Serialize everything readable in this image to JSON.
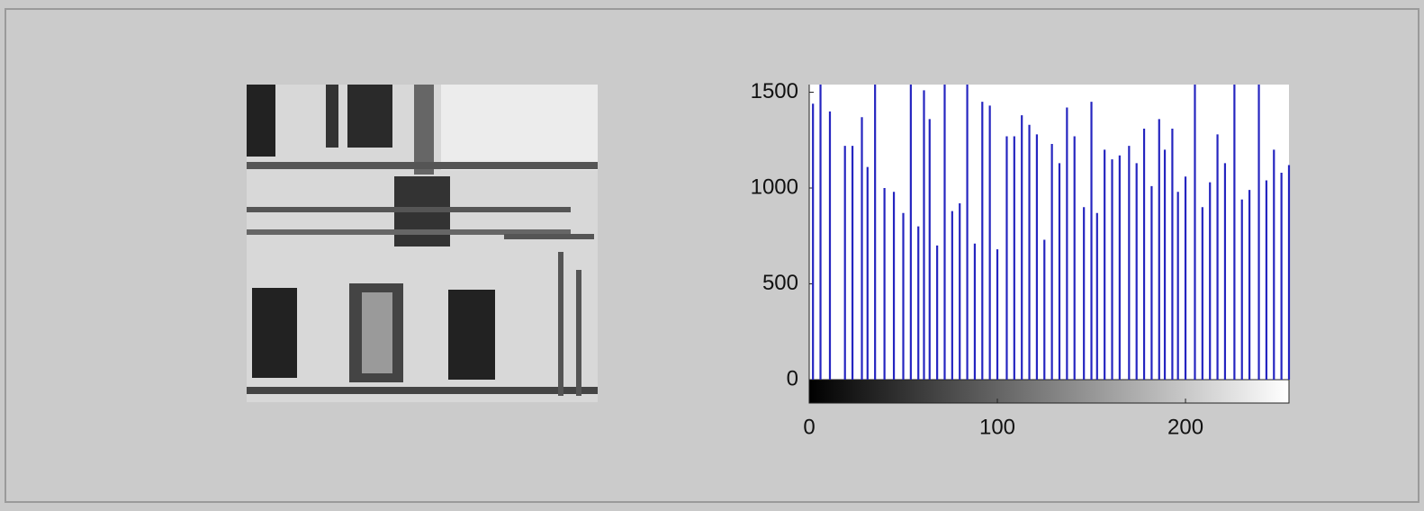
{
  "chart_data": {
    "type": "stem",
    "color": "#2525c0",
    "x": [
      2,
      6,
      11,
      19,
      23,
      28,
      31,
      35,
      40,
      45,
      50,
      54,
      58,
      61,
      64,
      68,
      72,
      76,
      80,
      84,
      88,
      92,
      96,
      100,
      105,
      109,
      113,
      117,
      121,
      125,
      129,
      133,
      137,
      141,
      146,
      150,
      153,
      157,
      161,
      165,
      170,
      174,
      178,
      182,
      186,
      189,
      193,
      196,
      200,
      205,
      209,
      213,
      217,
      221,
      226,
      230,
      234,
      239,
      243,
      247,
      251,
      255
    ],
    "values": [
      1440,
      1540,
      1400,
      1220,
      1220,
      1370,
      1110,
      1540,
      1000,
      980,
      870,
      1540,
      800,
      1510,
      1360,
      700,
      1540,
      880,
      920,
      1540,
      710,
      1450,
      1430,
      680,
      1270,
      1270,
      1380,
      1330,
      1280,
      730,
      1230,
      1130,
      1420,
      1270,
      900,
      1450,
      870,
      1200,
      1150,
      1170,
      1220,
      1130,
      1310,
      1010,
      1360,
      1200,
      1310,
      980,
      1060,
      1540,
      900,
      1030,
      1280,
      1130,
      1540,
      940,
      990,
      1540,
      1040,
      1200,
      1080,
      1120
    ],
    "xlim": [
      0,
      255
    ],
    "xticks": [
      0,
      100,
      200
    ],
    "ylim": [
      0,
      1540
    ],
    "yticks": [
      0,
      500,
      1000,
      1500
    ]
  }
}
